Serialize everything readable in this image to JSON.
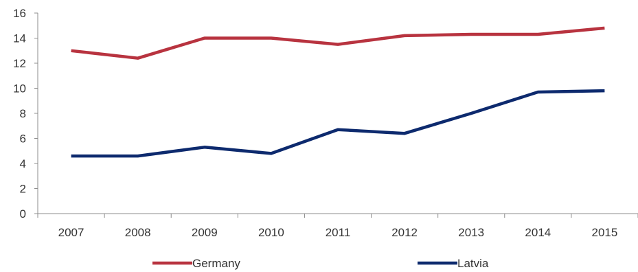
{
  "chart_data": {
    "type": "line",
    "categories": [
      "2007",
      "2008",
      "2009",
      "2010",
      "2011",
      "2012",
      "2013",
      "2014",
      "2015"
    ],
    "series": [
      {
        "name": "Germany",
        "color": "#b8333f",
        "values": [
          13.0,
          12.4,
          14.0,
          14.0,
          13.5,
          14.2,
          14.3,
          14.3,
          14.8
        ]
      },
      {
        "name": "Latvia",
        "color": "#0d2a6e",
        "values": [
          4.6,
          4.6,
          5.3,
          4.8,
          6.7,
          6.4,
          8.0,
          9.7,
          9.8
        ]
      }
    ],
    "yticks": [
      "0",
      "2",
      "4",
      "6",
      "8",
      "10",
      "12",
      "14",
      "16"
    ],
    "ylim": [
      0,
      16
    ],
    "grid": false,
    "legend_position": "bottom",
    "title": "",
    "xlabel": "",
    "ylabel": ""
  }
}
